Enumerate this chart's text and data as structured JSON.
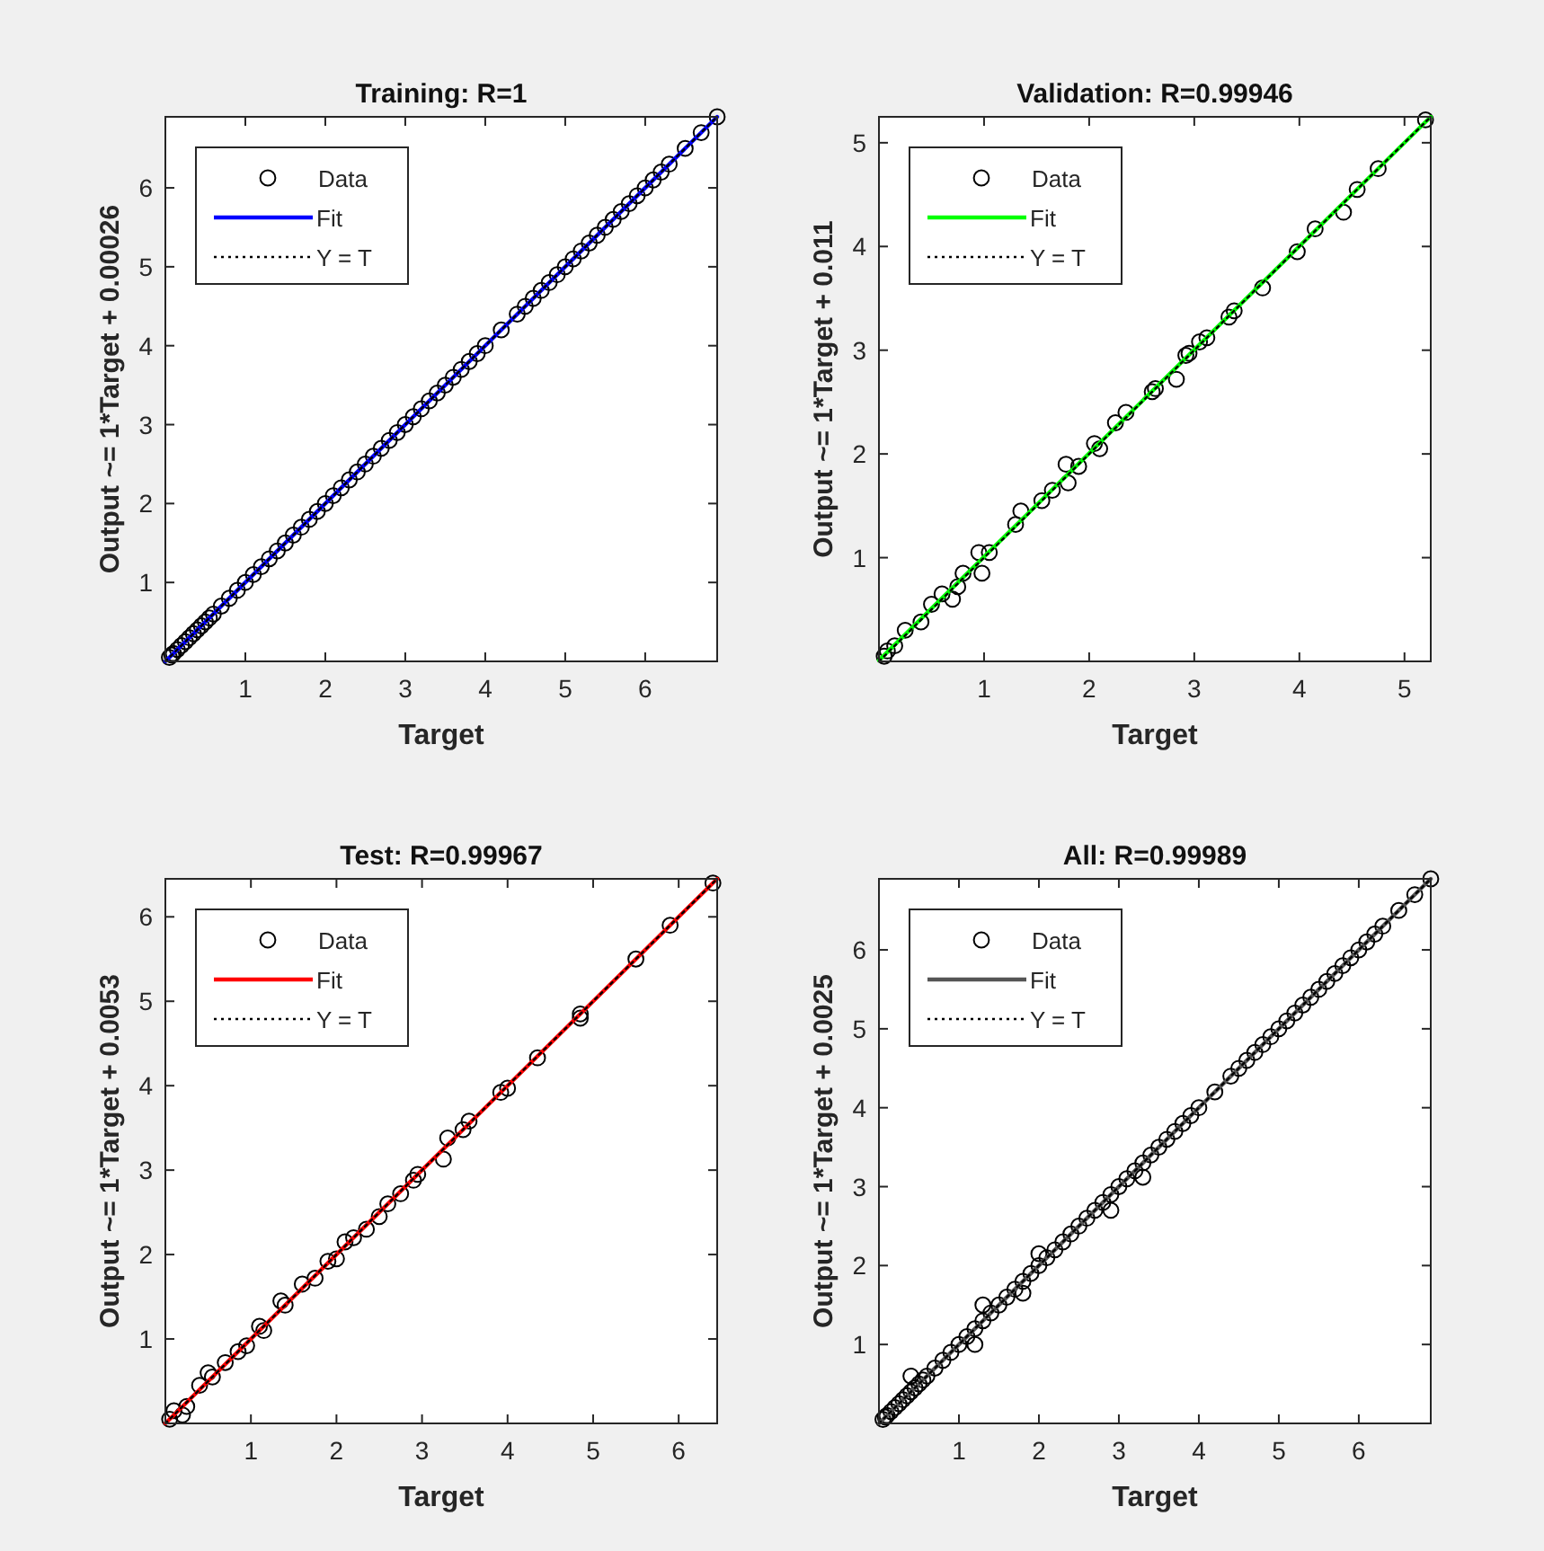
{
  "chart_data": [
    {
      "type": "scatter",
      "title": "Training: R=1",
      "xlabel": "Target",
      "ylabel": "Output ~= 1*Target + 0.00026",
      "xlim": [
        0,
        6.9
      ],
      "ylim": [
        0,
        6.9
      ],
      "xticks": [
        1,
        2,
        3,
        4,
        5,
        6
      ],
      "yticks": [
        1,
        2,
        3,
        4,
        5,
        6
      ],
      "grid": false,
      "legend": "top left",
      "series": [
        {
          "name": "Data",
          "marker": "circle",
          "color": "#000000",
          "x": [
            0.05,
            0.08,
            0.1,
            0.15,
            0.2,
            0.25,
            0.3,
            0.35,
            0.4,
            0.45,
            0.5,
            0.55,
            0.6,
            0.7,
            0.8,
            0.9,
            1.0,
            1.1,
            1.2,
            1.3,
            1.4,
            1.5,
            1.6,
            1.7,
            1.8,
            1.9,
            2.0,
            2.1,
            2.2,
            2.3,
            2.4,
            2.5,
            2.6,
            2.7,
            2.8,
            2.9,
            3.0,
            3.1,
            3.2,
            3.3,
            3.4,
            3.5,
            3.6,
            3.7,
            3.8,
            3.9,
            4.0,
            4.2,
            4.4,
            4.5,
            4.6,
            4.7,
            4.8,
            4.9,
            5.0,
            5.1,
            5.2,
            5.3,
            5.4,
            5.5,
            5.6,
            5.7,
            5.8,
            5.9,
            6.0,
            6.1,
            6.2,
            6.3,
            6.5,
            6.7,
            6.9
          ],
          "values": [
            0.05,
            0.08,
            0.1,
            0.15,
            0.2,
            0.25,
            0.3,
            0.35,
            0.4,
            0.45,
            0.5,
            0.55,
            0.6,
            0.7,
            0.8,
            0.9,
            1.0,
            1.1,
            1.2,
            1.3,
            1.4,
            1.5,
            1.6,
            1.7,
            1.8,
            1.9,
            2.0,
            2.1,
            2.2,
            2.3,
            2.4,
            2.5,
            2.6,
            2.7,
            2.8,
            2.9,
            3.0,
            3.1,
            3.2,
            3.3,
            3.4,
            3.5,
            3.6,
            3.7,
            3.8,
            3.9,
            4.0,
            4.2,
            4.4,
            4.5,
            4.6,
            4.7,
            4.8,
            4.9,
            5.0,
            5.1,
            5.2,
            5.3,
            5.4,
            5.5,
            5.6,
            5.7,
            5.8,
            5.9,
            6.0,
            6.1,
            6.2,
            6.3,
            6.5,
            6.7,
            6.9
          ]
        },
        {
          "name": "Fit",
          "type": "line",
          "line_style": "solid",
          "color": "#0000ff",
          "x": [
            0,
            6.9
          ],
          "values": [
            0,
            6.9
          ]
        },
        {
          "name": "Y = T",
          "type": "line",
          "line_style": "dotted",
          "color": "#000000",
          "x": [
            0,
            6.9
          ],
          "values": [
            0,
            6.9
          ]
        }
      ]
    },
    {
      "type": "scatter",
      "title": "Validation: R=0.99946",
      "xlabel": "Target",
      "ylabel": "Output ~= 1*Target + 0.011",
      "xlim": [
        0,
        5.25
      ],
      "ylim": [
        0,
        5.25
      ],
      "xticks": [
        1,
        2,
        3,
        4,
        5
      ],
      "yticks": [
        1,
        2,
        3,
        4,
        5
      ],
      "grid": false,
      "legend": "top left",
      "series": [
        {
          "name": "Data",
          "marker": "circle",
          "color": "#000000",
          "x": [
            5.2,
            4.75,
            4.55,
            4.42,
            4.15,
            3.98,
            3.65,
            3.38,
            3.33,
            3.12,
            3.05,
            2.95,
            2.92,
            2.83,
            2.63,
            2.6,
            2.35,
            2.25,
            2.1,
            2.05,
            1.9,
            1.8,
            1.78,
            1.65,
            1.55,
            1.35,
            1.3,
            1.05,
            0.98,
            0.95,
            0.8,
            0.75,
            0.7,
            0.6,
            0.5,
            0.4,
            0.25,
            0.15,
            0.08,
            0.05
          ],
          "values": [
            5.22,
            4.75,
            4.55,
            4.33,
            4.17,
            3.95,
            3.6,
            3.38,
            3.32,
            3.12,
            3.08,
            2.97,
            2.95,
            2.72,
            2.63,
            2.6,
            2.4,
            2.3,
            2.05,
            2.1,
            1.88,
            1.72,
            1.9,
            1.65,
            1.55,
            1.45,
            1.32,
            1.05,
            0.85,
            1.05,
            0.85,
            0.72,
            0.6,
            0.65,
            0.55,
            0.38,
            0.3,
            0.15,
            0.1,
            0.05
          ]
        },
        {
          "name": "Fit",
          "type": "line",
          "line_style": "solid",
          "color": "#00ff00",
          "x": [
            0,
            5.25
          ],
          "values": [
            0.01,
            5.25
          ]
        },
        {
          "name": "Y = T",
          "type": "line",
          "line_style": "dotted",
          "color": "#000000",
          "x": [
            0,
            5.25
          ],
          "values": [
            0,
            5.25
          ]
        }
      ]
    },
    {
      "type": "scatter",
      "title": "Test: R=0.99967",
      "xlabel": "Target",
      "ylabel": "Output ~= 1*Target + 0.0053",
      "xlim": [
        0,
        6.45
      ],
      "ylim": [
        0,
        6.45
      ],
      "xticks": [
        1,
        2,
        3,
        4,
        5,
        6
      ],
      "yticks": [
        1,
        2,
        3,
        4,
        5,
        6
      ],
      "grid": false,
      "legend": "top left",
      "series": [
        {
          "name": "Data",
          "marker": "circle",
          "color": "#000000",
          "x": [
            6.4,
            5.9,
            5.5,
            4.85,
            4.85,
            4.35,
            4.0,
            3.92,
            3.55,
            3.48,
            3.3,
            3.25,
            2.95,
            2.9,
            2.75,
            2.6,
            2.5,
            2.35,
            2.2,
            2.1,
            2.0,
            1.9,
            1.75,
            1.6,
            1.4,
            1.35,
            1.15,
            1.1,
            0.95,
            0.85,
            0.7,
            0.55,
            0.5,
            0.4,
            0.25,
            0.2,
            0.1,
            0.05
          ],
          "values": [
            6.4,
            5.9,
            5.5,
            4.8,
            4.85,
            4.33,
            3.97,
            3.92,
            3.58,
            3.48,
            3.38,
            3.13,
            2.95,
            2.88,
            2.72,
            2.6,
            2.45,
            2.3,
            2.2,
            2.15,
            1.95,
            1.92,
            1.72,
            1.65,
            1.4,
            1.45,
            1.1,
            1.15,
            0.92,
            0.85,
            0.72,
            0.55,
            0.6,
            0.45,
            0.2,
            0.1,
            0.15,
            0.05
          ]
        },
        {
          "name": "Fit",
          "type": "line",
          "line_style": "solid",
          "color": "#ff0000",
          "x": [
            0,
            6.45
          ],
          "values": [
            0,
            6.45
          ]
        },
        {
          "name": "Y = T",
          "type": "line",
          "line_style": "dotted",
          "color": "#000000",
          "x": [
            0,
            6.45
          ],
          "values": [
            0,
            6.45
          ]
        }
      ]
    },
    {
      "type": "scatter",
      "title": "All: R=0.99989",
      "xlabel": "Target",
      "ylabel": "Output ~= 1*Target + 0.0025",
      "xlim": [
        0,
        6.9
      ],
      "ylim": [
        0,
        6.9
      ],
      "xticks": [
        1,
        2,
        3,
        4,
        5,
        6
      ],
      "yticks": [
        1,
        2,
        3,
        4,
        5,
        6
      ],
      "grid": false,
      "legend": "top left",
      "series": [
        {
          "name": "Data",
          "marker": "circle",
          "color": "#000000",
          "x": [
            0.05,
            0.08,
            0.1,
            0.15,
            0.2,
            0.25,
            0.3,
            0.35,
            0.4,
            0.4,
            0.45,
            0.5,
            0.55,
            0.6,
            0.7,
            0.8,
            0.9,
            1.0,
            1.1,
            1.2,
            1.2,
            1.3,
            1.3,
            1.4,
            1.5,
            1.6,
            1.7,
            1.8,
            1.8,
            1.9,
            2.0,
            2.0,
            2.1,
            2.2,
            2.3,
            2.4,
            2.5,
            2.6,
            2.7,
            2.8,
            2.9,
            2.9,
            3.0,
            3.1,
            3.2,
            3.3,
            3.3,
            3.4,
            3.5,
            3.6,
            3.7,
            3.8,
            3.9,
            4.0,
            4.2,
            4.4,
            4.5,
            4.6,
            4.7,
            4.8,
            4.9,
            5.0,
            5.1,
            5.2,
            5.3,
            5.4,
            5.5,
            5.6,
            5.7,
            5.8,
            5.9,
            6.0,
            6.1,
            6.2,
            6.3,
            6.5,
            6.7,
            6.9
          ],
          "values": [
            0.05,
            0.08,
            0.1,
            0.15,
            0.2,
            0.25,
            0.3,
            0.35,
            0.4,
            0.6,
            0.45,
            0.5,
            0.55,
            0.6,
            0.7,
            0.8,
            0.9,
            1.0,
            1.1,
            1.2,
            1.0,
            1.3,
            1.5,
            1.4,
            1.5,
            1.6,
            1.7,
            1.8,
            1.65,
            1.9,
            2.0,
            2.15,
            2.1,
            2.2,
            2.3,
            2.4,
            2.5,
            2.6,
            2.7,
            2.8,
            2.9,
            2.7,
            3.0,
            3.1,
            3.2,
            3.3,
            3.12,
            3.4,
            3.5,
            3.6,
            3.7,
            3.8,
            3.9,
            4.0,
            4.2,
            4.4,
            4.5,
            4.6,
            4.7,
            4.8,
            4.9,
            5.0,
            5.1,
            5.2,
            5.3,
            5.4,
            5.5,
            5.6,
            5.7,
            5.8,
            5.9,
            6.0,
            6.1,
            6.2,
            6.3,
            6.5,
            6.7,
            6.9
          ]
        },
        {
          "name": "Fit",
          "type": "line",
          "line_style": "solid",
          "color": "#555555",
          "x": [
            0,
            6.9
          ],
          "values": [
            0,
            6.9
          ]
        },
        {
          "name": "Y = T",
          "type": "line",
          "line_style": "dotted",
          "color": "#000000",
          "x": [
            0,
            6.9
          ],
          "values": [
            0,
            6.9
          ]
        }
      ]
    }
  ]
}
